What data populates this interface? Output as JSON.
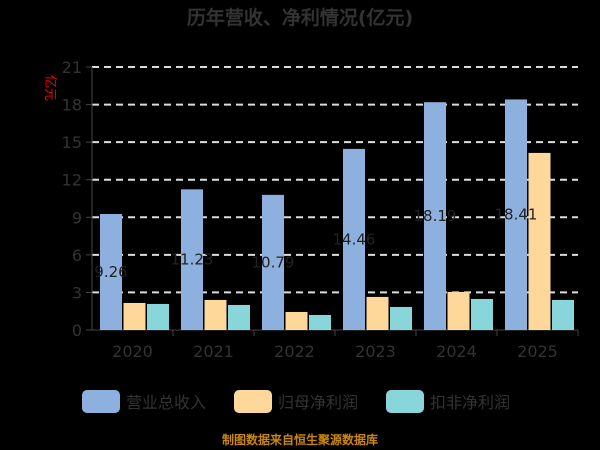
{
  "chart_data": {
    "type": "bar",
    "title": "历年营收、净利情况(亿元)",
    "ylabel": "亿元",
    "xlabel": "",
    "ylim": [
      0,
      21
    ],
    "yticks": [
      0,
      3,
      6,
      9,
      12,
      15,
      18,
      21
    ],
    "grid": true,
    "legend_position": "bottom",
    "categories": [
      "2020",
      "2021",
      "2022",
      "2023",
      "2024",
      "2025"
    ],
    "series": [
      {
        "name": "营业总收入",
        "color": "#8eb0de",
        "values": [
          9.26,
          11.23,
          10.79,
          14.46,
          18.19,
          18.41
        ],
        "labels": [
          "9.26",
          "11.23",
          "10.79",
          "14.46",
          "18.19",
          "18.41"
        ]
      },
      {
        "name": "归母净利润",
        "color": "#fdd89a",
        "values": [
          2.16,
          2.4,
          1.44,
          2.64,
          3.04,
          14.14
        ]
      },
      {
        "name": "扣非净利润",
        "color": "#88d6da",
        "values": [
          2.08,
          2.0,
          1.2,
          1.84,
          2.48,
          2.4
        ]
      }
    ]
  },
  "source_note": "制图数据来自恒生聚源数据库"
}
